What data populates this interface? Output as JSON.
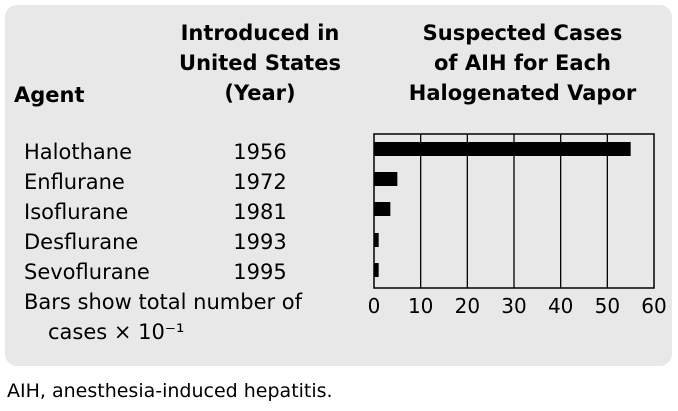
{
  "headers": {
    "agent": "Agent",
    "year": [
      "Introduced in",
      "United States",
      "(Year)"
    ],
    "cases": [
      "Suspected Cases",
      "of AIH for Each",
      "Halogenated Vapor"
    ]
  },
  "rows": [
    {
      "agent": "Halothane",
      "year": "1956"
    },
    {
      "agent": "Enflurane",
      "year": "1972"
    },
    {
      "agent": "Isoflurane",
      "year": "1981"
    },
    {
      "agent": "Desflurane",
      "year": "1993"
    },
    {
      "agent": "Sevoflurane",
      "year": "1995"
    }
  ],
  "note": [
    "Bars show total number of",
    "cases × 10⁻¹"
  ],
  "caption": "AIH, anesthesia-induced hepatitis.",
  "chart_data": {
    "type": "bar",
    "orientation": "horizontal",
    "categories": [
      "Halothane",
      "Enflurane",
      "Isoflurane",
      "Desflurane",
      "Sevoflurane"
    ],
    "values": [
      55,
      5,
      3.5,
      1,
      1
    ],
    "xlim": [
      0,
      60
    ],
    "xticks": [
      "0",
      "10",
      "20",
      "30",
      "40",
      "50",
      "60"
    ],
    "grid": true,
    "bar_color": "#000000",
    "background": "#e8e8e8"
  }
}
